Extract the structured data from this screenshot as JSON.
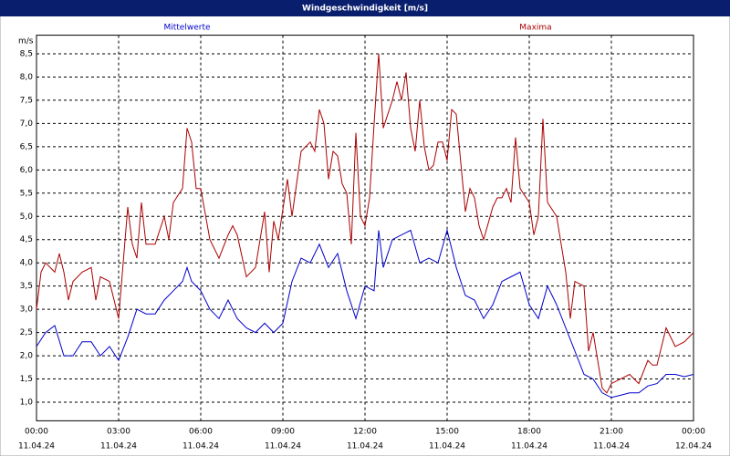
{
  "chart_data": {
    "type": "line",
    "title": "Windgeschwindigkeit [m/s]",
    "y_unit": "m/s",
    "grid": true,
    "xlim": [
      0,
      1440
    ],
    "ylim": [
      0.6,
      8.9
    ],
    "xticks": [
      {
        "value": 0,
        "label": "00:00",
        "date": "11.04.24"
      },
      {
        "value": 180,
        "label": "03:00",
        "date": "11.04.24"
      },
      {
        "value": 360,
        "label": "06:00",
        "date": "11.04.24"
      },
      {
        "value": 540,
        "label": "09:00",
        "date": "11.04.24"
      },
      {
        "value": 720,
        "label": "12:00",
        "date": "11.04.24"
      },
      {
        "value": 900,
        "label": "15:00",
        "date": "11.04.24"
      },
      {
        "value": 1080,
        "label": "18:00",
        "date": "11.04.24"
      },
      {
        "value": 1260,
        "label": "21:00",
        "date": "11.04.24"
      },
      {
        "value": 1440,
        "label": "00:00",
        "date": "12.04.24"
      }
    ],
    "yticks": [
      {
        "value": 1.0,
        "label": "1,0"
      },
      {
        "value": 1.5,
        "label": "1,5"
      },
      {
        "value": 2.0,
        "label": "2,0"
      },
      {
        "value": 2.5,
        "label": "2,5"
      },
      {
        "value": 3.0,
        "label": "3,0"
      },
      {
        "value": 3.5,
        "label": "3,5"
      },
      {
        "value": 4.0,
        "label": "4,0"
      },
      {
        "value": 4.5,
        "label": "4,5"
      },
      {
        "value": 5.0,
        "label": "5,0"
      },
      {
        "value": 5.5,
        "label": "5,5"
      },
      {
        "value": 6.0,
        "label": "6,0"
      },
      {
        "value": 6.5,
        "label": "6,5"
      },
      {
        "value": 7.0,
        "label": "7,0"
      },
      {
        "value": 7.5,
        "label": "7,5"
      },
      {
        "value": 8.0,
        "label": "8,0"
      },
      {
        "value": 8.5,
        "label": "8,5"
      }
    ],
    "series": [
      {
        "name": "Mittelwerte",
        "color": "#0000cc",
        "x": [
          0,
          20,
          40,
          60,
          80,
          100,
          120,
          140,
          160,
          180,
          200,
          220,
          240,
          260,
          280,
          300,
          320,
          330,
          340,
          360,
          380,
          400,
          420,
          440,
          460,
          480,
          500,
          520,
          540,
          560,
          580,
          600,
          620,
          640,
          660,
          680,
          700,
          720,
          740,
          750,
          760,
          780,
          800,
          820,
          840,
          860,
          880,
          900,
          920,
          940,
          960,
          980,
          1000,
          1020,
          1040,
          1060,
          1080,
          1100,
          1120,
          1140,
          1160,
          1180,
          1200,
          1220,
          1240,
          1260,
          1280,
          1300,
          1320,
          1340,
          1360,
          1380,
          1400,
          1420,
          1440
        ],
        "values": [
          2.2,
          2.5,
          2.65,
          2.0,
          2.0,
          2.3,
          2.3,
          2.0,
          2.2,
          1.9,
          2.4,
          3.0,
          2.9,
          2.9,
          3.2,
          3.4,
          3.6,
          3.9,
          3.6,
          3.4,
          3.0,
          2.8,
          3.2,
          2.8,
          2.6,
          2.5,
          2.7,
          2.5,
          2.7,
          3.6,
          4.1,
          4.0,
          4.4,
          3.9,
          4.2,
          3.4,
          2.8,
          3.5,
          3.4,
          4.7,
          3.9,
          4.5,
          4.6,
          4.7,
          4.0,
          4.1,
          4.0,
          4.7,
          3.9,
          3.3,
          3.2,
          2.8,
          3.1,
          3.6,
          3.7,
          3.8,
          3.1,
          2.8,
          3.5,
          3.1,
          2.6,
          2.1,
          1.6,
          1.5,
          1.2,
          1.1,
          1.15,
          1.2,
          1.2,
          1.35,
          1.4,
          1.6,
          1.6,
          1.55,
          1.6
        ]
      },
      {
        "name": "Maxima",
        "color": "#aa0000",
        "x": [
          0,
          10,
          20,
          40,
          50,
          60,
          70,
          80,
          100,
          120,
          130,
          140,
          160,
          180,
          200,
          210,
          220,
          230,
          240,
          260,
          280,
          290,
          300,
          320,
          330,
          340,
          350,
          360,
          380,
          400,
          420,
          430,
          440,
          460,
          480,
          500,
          510,
          520,
          530,
          550,
          560,
          580,
          600,
          610,
          620,
          630,
          640,
          650,
          660,
          670,
          680,
          690,
          700,
          710,
          720,
          730,
          740,
          750,
          760,
          770,
          780,
          790,
          800,
          810,
          820,
          830,
          840,
          850,
          860,
          870,
          880,
          890,
          900,
          910,
          920,
          940,
          950,
          960,
          970,
          980,
          1000,
          1010,
          1020,
          1030,
          1040,
          1050,
          1060,
          1080,
          1090,
          1100,
          1110,
          1120,
          1140,
          1160,
          1170,
          1180,
          1200,
          1210,
          1220,
          1230,
          1240,
          1250,
          1260,
          1280,
          1300,
          1320,
          1340,
          1350,
          1360,
          1380,
          1400,
          1420,
          1440
        ],
        "values": [
          3.0,
          3.8,
          4.0,
          3.8,
          4.2,
          3.8,
          3.2,
          3.6,
          3.8,
          3.9,
          3.2,
          3.7,
          3.6,
          2.8,
          5.2,
          4.4,
          4.1,
          5.3,
          4.4,
          4.4,
          5.0,
          4.5,
          5.3,
          5.6,
          6.9,
          6.6,
          5.6,
          5.6,
          4.5,
          4.1,
          4.6,
          4.8,
          4.6,
          3.7,
          3.9,
          5.1,
          3.8,
          4.9,
          4.5,
          5.8,
          5.0,
          6.4,
          6.6,
          6.4,
          7.3,
          7.0,
          5.8,
          6.4,
          6.3,
          5.7,
          5.5,
          4.4,
          6.8,
          5.0,
          4.8,
          5.4,
          7.0,
          8.5,
          6.9,
          7.2,
          7.5,
          7.9,
          7.5,
          8.1,
          6.9,
          6.4,
          7.5,
          6.5,
          6.0,
          6.1,
          6.6,
          6.6,
          6.2,
          7.3,
          7.2,
          5.1,
          5.6,
          5.4,
          4.8,
          4.5,
          5.2,
          5.4,
          5.4,
          5.6,
          5.3,
          6.7,
          5.6,
          5.3,
          4.6,
          5.0,
          7.1,
          5.3,
          5.0,
          3.8,
          2.8,
          3.6,
          3.5,
          2.1,
          2.5,
          1.9,
          1.3,
          1.2,
          1.4,
          1.5,
          1.6,
          1.4,
          1.9,
          1.8,
          1.8,
          2.6,
          2.2,
          2.3,
          2.5
        ]
      }
    ]
  }
}
